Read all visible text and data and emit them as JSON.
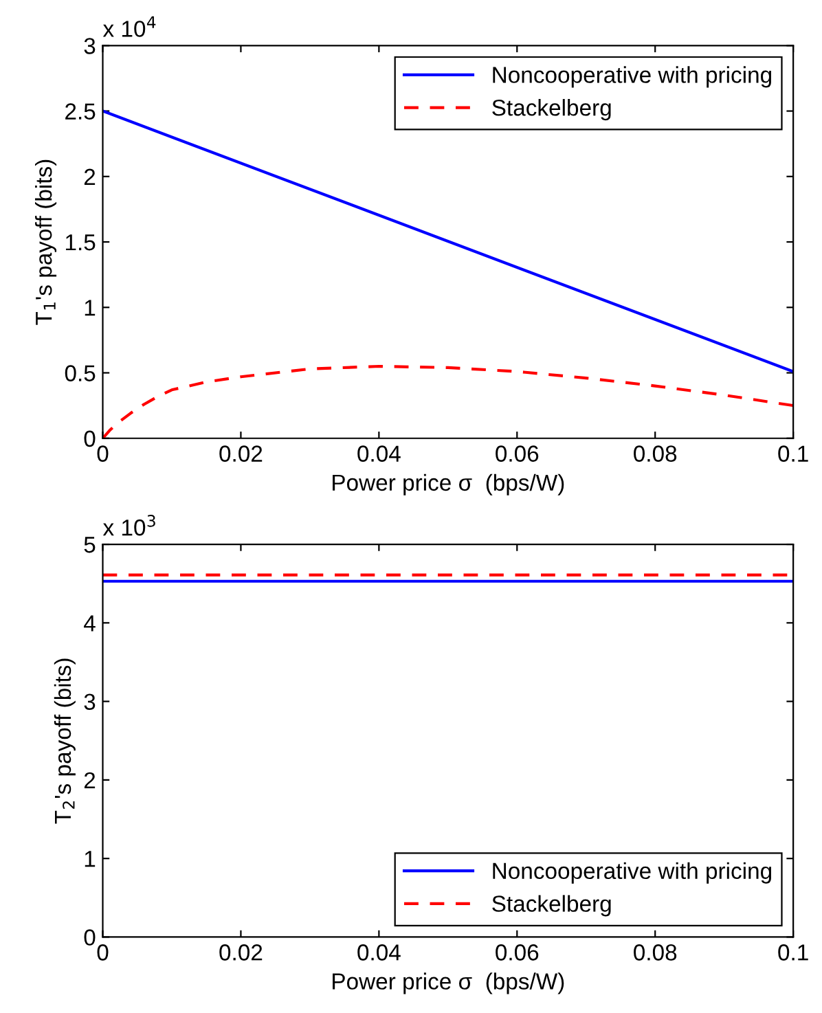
{
  "chart_data": [
    {
      "type": "line",
      "xlabel": "Power price σ  (bps/W)",
      "ylabel": "T$_{1}$'s payoff (bits)",
      "annotations": [
        "x 10$^{4}$"
      ],
      "x": [
        0,
        0.001,
        0.002,
        0.004,
        0.006,
        0.008,
        0.01,
        0.015,
        0.02,
        0.03,
        0.04,
        0.05,
        0.06,
        0.07,
        0.08,
        0.09,
        0.1
      ],
      "series": [
        {
          "name": "Noncooperative with pricing",
          "color": "#0000ff",
          "line_style": "solid",
          "x": [
            0,
            0.1
          ],
          "values": [
            2.5,
            0.51
          ]
        },
        {
          "name": "Stackelberg",
          "color": "#ff0000",
          "line_style": "dashed",
          "values": [
            0,
            0.06,
            0.11,
            0.19,
            0.26,
            0.32,
            0.37,
            0.43,
            0.47,
            0.53,
            0.55,
            0.54,
            0.51,
            0.46,
            0.4,
            0.33,
            0.25
          ]
        }
      ],
      "xlim": [
        0,
        0.1
      ],
      "xticks": [
        0,
        0.02,
        0.04,
        0.06,
        0.08,
        0.1
      ],
      "ylim": [
        0,
        3
      ],
      "yticks": [
        0,
        0.5,
        1,
        1.5,
        2,
        2.5,
        3
      ],
      "grid": false,
      "legend": "top right"
    },
    {
      "type": "line",
      "xlabel": "Power price σ  (bps/W)",
      "ylabel": "T$_{2}$'s payoff (bits)",
      "annotations": [
        "x 10$^{3}$"
      ],
      "x": [
        0,
        0.1
      ],
      "series": [
        {
          "name": "Noncooperative with pricing",
          "color": "#0000ff",
          "line_style": "solid",
          "values": [
            4.53,
            4.53
          ]
        },
        {
          "name": "Stackelberg",
          "color": "#ff0000",
          "line_style": "dashed",
          "values": [
            4.61,
            4.61
          ]
        }
      ],
      "xlim": [
        0,
        0.1
      ],
      "xticks": [
        0,
        0.02,
        0.04,
        0.06,
        0.08,
        0.1
      ],
      "ylim": [
        0,
        5
      ],
      "yticks": [
        0,
        1,
        2,
        3,
        4,
        5
      ],
      "grid": false,
      "legend": "bottom right"
    }
  ]
}
